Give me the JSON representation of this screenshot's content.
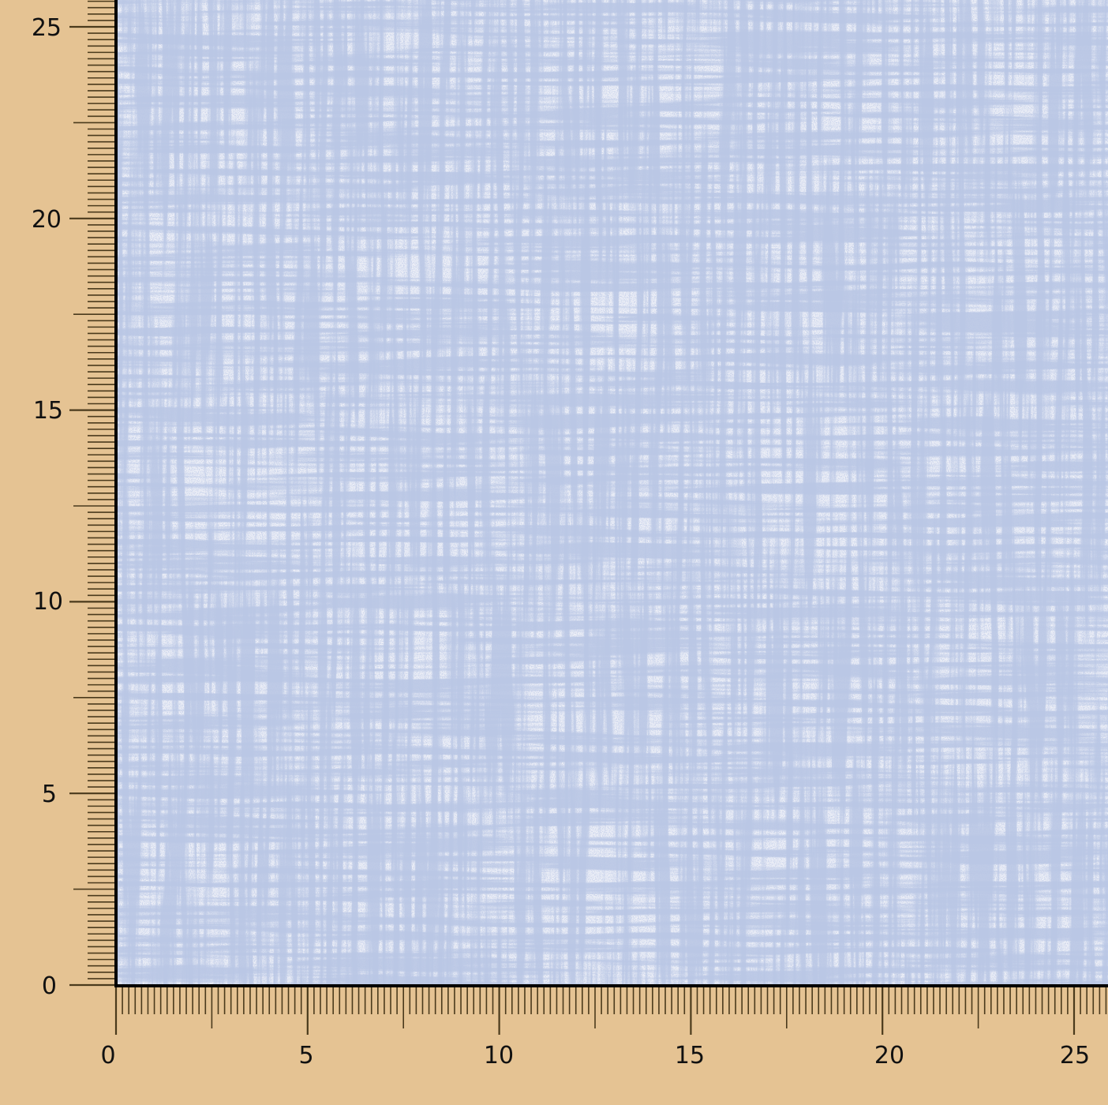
{
  "swatch": {
    "colors": {
      "background": "#e5c393",
      "fabric_base": "#f1f3f8",
      "fabric_thread": "#7e93c6",
      "axis": "#000000",
      "tick": "#4a3a1c"
    },
    "pattern": "blue crosshatch linen texture"
  },
  "ruler": {
    "x_labels": [
      "0",
      "5",
      "10",
      "15",
      "20",
      "25"
    ],
    "y_labels": [
      "0",
      "5",
      "10",
      "15",
      "20",
      "25"
    ],
    "range": [
      0,
      25
    ],
    "minor_per_unit": 6
  }
}
